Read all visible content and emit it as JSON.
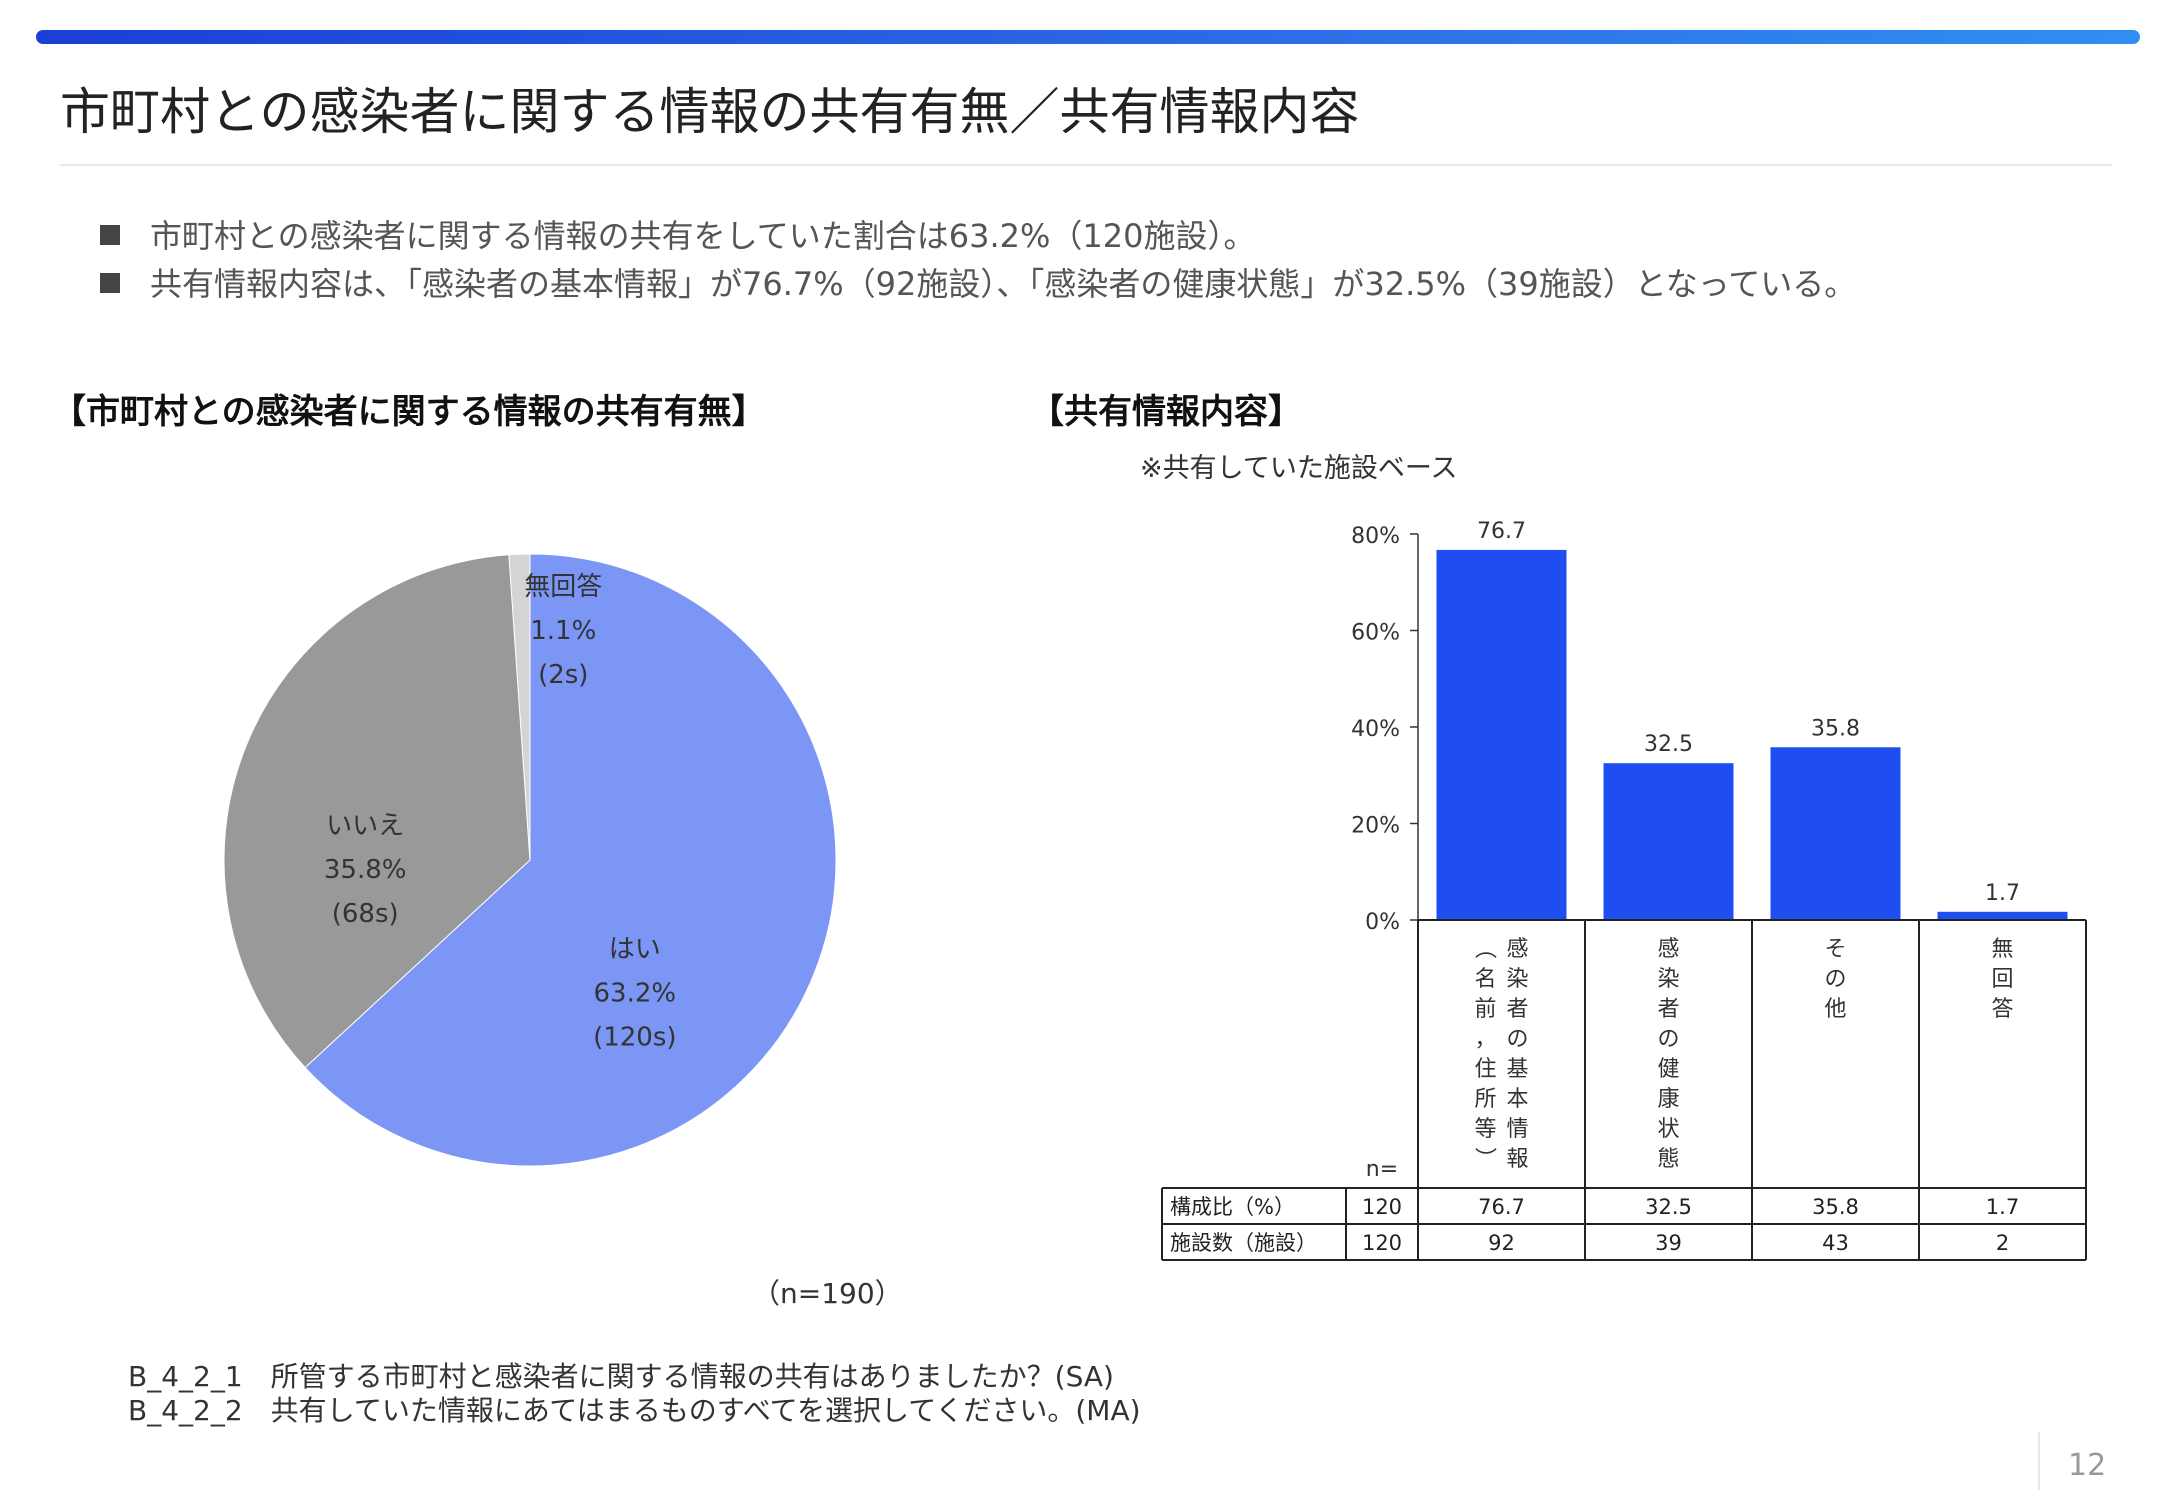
{
  "slide": {
    "title": "市町村との感染者に関する情報の共有有無／共有情報内容",
    "bullets": [
      "市町村との感染者に関する情報の共有をしていた割合は63.2%（120施設）。",
      "共有情報内容は、「感染者の基本情報」が76.7%（92施設）、「感染者の健康状態」が32.5%（39施設）となっている。"
    ],
    "page_number": "12",
    "questions": [
      "B_4_2_1　所管する市町村と感染者に関する情報の共有はありましたか？(SA)",
      "B_4_2_2　共有していた情報にあてはまるものすべてを選択してください。(MA)"
    ]
  },
  "chart_data": [
    {
      "type": "pie",
      "title": "【市町村との感染者に関する情報の共有有無】",
      "n_label": "（n=190）",
      "slices": [
        {
          "label": "はい",
          "pct_label": "63.2%",
          "count_label": "(120s)",
          "value": 63.2,
          "color": "#7b96f5"
        },
        {
          "label": "いいえ",
          "pct_label": "35.8%",
          "count_label": "(68s)",
          "value": 35.8,
          "color": "#999999"
        },
        {
          "label": "無回答",
          "pct_label": "1.1%",
          "count_label": "(2s)",
          "value": 1.1,
          "color": "#d4d4d4"
        }
      ]
    },
    {
      "type": "bar",
      "title": "【共有情報内容】",
      "note": "※共有していた施設ベース",
      "ylim": [
        0,
        80
      ],
      "yticks": [
        "0%",
        "20%",
        "40%",
        "60%",
        "80%"
      ],
      "bar_color": "#1f4ef0",
      "categories": [
        {
          "col1": "感染者の基本情報",
          "col2": "（名前，住所等）"
        },
        {
          "col1": "感染者の健康状態"
        },
        {
          "col1": "その他"
        },
        {
          "col1": "無回答"
        }
      ],
      "values": [
        76.7,
        32.5,
        35.8,
        1.7
      ],
      "value_labels": [
        "76.7",
        "32.5",
        "35.8",
        "1.7"
      ],
      "table": {
        "n_header": "n=",
        "rows": [
          {
            "label": "構成比（%）",
            "n": "120",
            "cells": [
              "76.7",
              "32.5",
              "35.8",
              "1.7"
            ]
          },
          {
            "label": "施設数（施設）",
            "n": "120",
            "cells": [
              "92",
              "39",
              "43",
              "2"
            ]
          }
        ]
      }
    }
  ]
}
